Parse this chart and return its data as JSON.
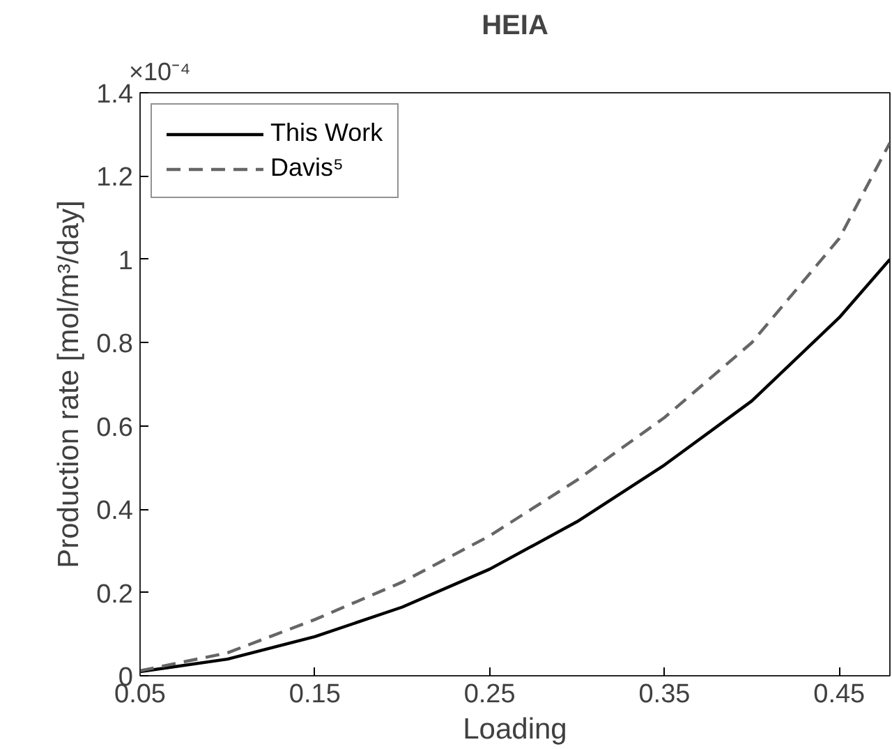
{
  "chart_data": {
    "type": "line",
    "title": "HEIA",
    "xlabel": "Loading",
    "ylabel": "Production rate [mol/m³/day]",
    "annotations": [
      "×10⁻⁴"
    ],
    "x": [
      0.05,
      0.1,
      0.15,
      0.2,
      0.25,
      0.3,
      0.35,
      0.4,
      0.45,
      0.479
    ],
    "series": [
      {
        "name": "This Work",
        "color": "#000000",
        "line_style": "solid",
        "values": [
          0.01,
          0.04,
          0.094,
          0.165,
          0.256,
          0.37,
          0.506,
          0.66,
          0.86,
          1.0
        ]
      },
      {
        "name": "Davis⁵",
        "color": "#666666",
        "line_style": "dashed",
        "values": [
          0.012,
          0.055,
          0.135,
          0.225,
          0.336,
          0.47,
          0.62,
          0.8,
          1.05,
          1.28
        ]
      }
    ],
    "xlim": [
      0.05,
      0.479
    ],
    "ylim": [
      0,
      1.4
    ],
    "xticks": [
      0.05,
      0.15,
      0.25,
      0.35,
      0.45
    ],
    "yticks": [
      0,
      0.2,
      0.4,
      0.6,
      0.8,
      1,
      1.2,
      1.4
    ],
    "grid": false,
    "legend": "top left",
    "marker": "none"
  }
}
